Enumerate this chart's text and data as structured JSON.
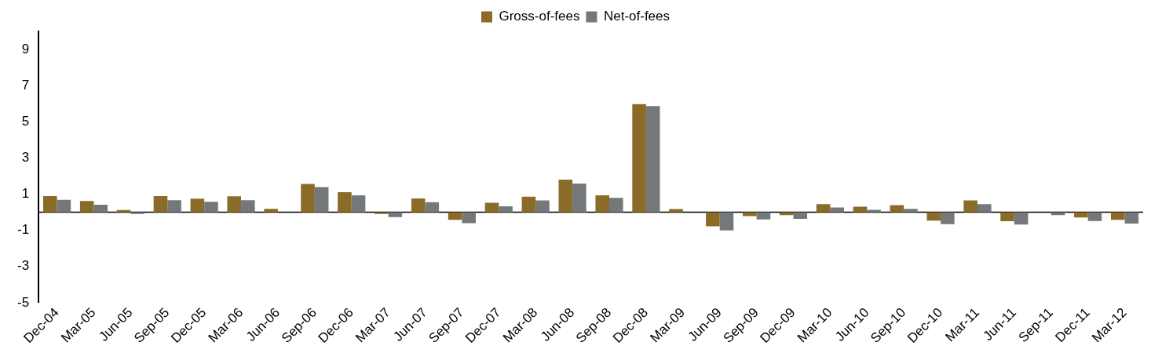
{
  "chart_data": {
    "type": "bar",
    "categories": [
      "Dec-04",
      "Mar-05",
      "Jun-05",
      "Sep-05",
      "Dec-05",
      "Mar-06",
      "Jun-06",
      "Sep-06",
      "Dec-06",
      "Mar-07",
      "Jun-07",
      "Sep-07",
      "Dec-07",
      "Mar-08",
      "Jun-08",
      "Sep-08",
      "Dec-08",
      "Mar-09",
      "Jun-09",
      "Sep-09",
      "Dec-09",
      "Mar-10",
      "Jun-10",
      "Sep-10",
      "Dec-10",
      "Mar-11",
      "Jun-11",
      "Sep-11",
      "Dec-11",
      "Mar-12"
    ],
    "series": [
      {
        "name": "Gross-of-fees",
        "color": "#8b6b28",
        "values": [
          0.89,
          0.62,
          0.12,
          0.89,
          0.75,
          0.88,
          0.19,
          1.56,
          1.11,
          -0.1,
          0.76,
          -0.42,
          0.52,
          0.86,
          1.8,
          0.93,
          5.98,
          0.17,
          -0.78,
          -0.22,
          -0.16,
          0.45,
          0.31,
          0.39,
          -0.46,
          0.65,
          -0.5,
          0,
          -0.29,
          -0.42
        ]
      },
      {
        "name": "Net-of-fees",
        "color": "#75787b",
        "values": [
          0.69,
          0.41,
          -0.1,
          0.66,
          0.58,
          0.66,
          0,
          1.39,
          0.93,
          -0.27,
          0.56,
          -0.61,
          0.33,
          0.65,
          1.59,
          0.79,
          5.87,
          0,
          -1.01,
          -0.4,
          -0.37,
          0.26,
          0.13,
          0.19,
          -0.66,
          0.45,
          -0.68,
          -0.16,
          -0.49,
          -0.63
        ]
      }
    ],
    "ylim": [
      -5,
      10
    ],
    "yticks": [
      -5,
      -3,
      -1,
      1,
      3,
      5,
      7,
      9
    ],
    "grid": false,
    "legend": "top"
  }
}
